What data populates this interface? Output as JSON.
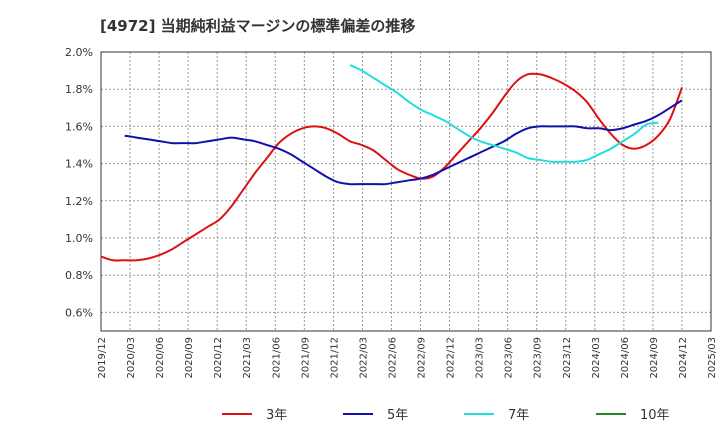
{
  "chart_data": {
    "type": "line",
    "title": "[4972]  当期純利益マージンの標準偏差の推移",
    "xlabel": "",
    "ylabel": "",
    "ylim": [
      0.5,
      2.0
    ],
    "y_ticks": [
      "2.0%",
      "1.8%",
      "1.6%",
      "1.4%",
      "1.2%",
      "1.0%",
      "0.8%",
      "0.6%"
    ],
    "y_tick_values": [
      2.0,
      1.8,
      1.6,
      1.4,
      1.2,
      1.0,
      0.8,
      0.6
    ],
    "x_ticks": [
      "2019/12",
      "2020/03",
      "2020/06",
      "2020/09",
      "2020/12",
      "2021/03",
      "2021/06",
      "2021/09",
      "2021/12",
      "2022/03",
      "2022/06",
      "2022/09",
      "2022/12",
      "2023/03",
      "2023/06",
      "2023/09",
      "2023/12",
      "2024/03",
      "2024/06",
      "2024/09",
      "2024/12",
      "2025/03"
    ],
    "grid": true,
    "legend_placement": "bottom",
    "series": [
      {
        "name": "3年",
        "color": "#dd1111",
        "values": [
          0.9,
          0.88,
          0.88,
          0.88,
          0.89,
          0.91,
          0.94,
          0.98,
          1.02,
          1.06,
          1.1,
          1.17,
          1.26,
          1.35,
          1.43,
          1.51,
          1.56,
          1.59,
          1.6,
          1.59,
          1.56,
          1.52,
          1.5,
          1.47,
          1.42,
          1.37,
          1.34,
          1.32,
          1.33,
          1.38,
          1.45,
          1.52,
          1.59,
          1.67,
          1.76,
          1.84,
          1.88,
          1.88,
          1.86,
          1.83,
          1.79,
          1.73,
          1.64,
          1.56,
          1.5,
          1.48,
          1.5,
          1.55,
          1.64,
          1.81
        ]
      },
      {
        "name": "5年",
        "color": "#1111aa",
        "values": [
          null,
          null,
          1.55,
          1.54,
          1.53,
          1.52,
          1.51,
          1.51,
          1.51,
          1.52,
          1.53,
          1.54,
          1.53,
          1.52,
          1.5,
          1.48,
          1.45,
          1.41,
          1.37,
          1.33,
          1.3,
          1.29,
          1.29,
          1.29,
          1.29,
          1.3,
          1.31,
          1.32,
          1.34,
          1.37,
          1.4,
          1.43,
          1.46,
          1.49,
          1.52,
          1.56,
          1.59,
          1.6,
          1.6,
          1.6,
          1.6,
          1.59,
          1.59,
          1.58,
          1.59,
          1.61,
          1.63,
          1.66,
          1.7,
          1.74
        ]
      },
      {
        "name": "7年",
        "color": "#22dddd",
        "values": [
          null,
          null,
          null,
          null,
          null,
          null,
          null,
          null,
          null,
          null,
          null,
          null,
          null,
          null,
          null,
          null,
          null,
          null,
          null,
          null,
          null,
          1.93,
          1.9,
          1.86,
          1.82,
          1.78,
          1.73,
          1.69,
          1.66,
          1.63,
          1.59,
          1.55,
          1.52,
          1.5,
          1.48,
          1.46,
          1.43,
          1.42,
          1.41,
          1.41,
          1.41,
          1.42,
          1.45,
          1.48,
          1.52,
          1.56,
          1.61,
          1.62,
          null,
          null
        ]
      },
      {
        "name": "10年",
        "color": "#228822",
        "values": []
      }
    ]
  }
}
